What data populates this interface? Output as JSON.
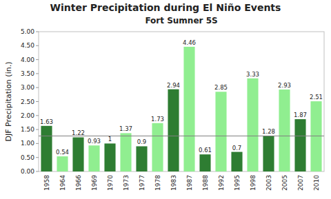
{
  "chart_data": {
    "type": "bar",
    "title": "Winter Precipitation during El Niño Events",
    "subtitle": "Fort Sumner 5S",
    "y_label": "DJF Precipitation (in.)",
    "categories": [
      "1958",
      "1964",
      "1966",
      "1969",
      "1970",
      "1973",
      "1977",
      "1978",
      "1983",
      "1987",
      "1988",
      "1992",
      "1995",
      "1998",
      "2003",
      "2005",
      "2007",
      "2010"
    ],
    "values": [
      1.63,
      0.54,
      1.22,
      0.93,
      1.0,
      1.37,
      0.9,
      1.73,
      2.94,
      4.46,
      0.61,
      2.85,
      0.7,
      3.33,
      1.28,
      2.93,
      1.87,
      2.51
    ],
    "colors": [
      "#2E7D32",
      "#90EE90",
      "#2E7D32",
      "#90EE90",
      "#2E7D32",
      "#90EE90",
      "#2E7D32",
      "#90EE90",
      "#2E7D32",
      "#90EE90",
      "#2E7D32",
      "#90EE90",
      "#2E7D32",
      "#90EE90",
      "#2E7D32",
      "#90EE90",
      "#2E7D32",
      "#90EE90"
    ],
    "reference_line": 1.27,
    "ylim": [
      0.0,
      5.0
    ],
    "yticks": [
      {
        "value": 0.0,
        "label": "0.00"
      },
      {
        "value": 0.5,
        "label": "0.50"
      },
      {
        "value": 1.0,
        "label": "1.00"
      },
      {
        "value": 1.5,
        "label": "1.50"
      },
      {
        "value": 2.0,
        "label": "2.00"
      },
      {
        "value": 2.5,
        "label": "2.50"
      },
      {
        "value": 3.0,
        "label": "3.00"
      },
      {
        "value": 3.5,
        "label": "3.50"
      },
      {
        "value": 4.0,
        "label": "4.00"
      },
      {
        "value": 4.5,
        "label": "4.50"
      },
      {
        "value": 5.0,
        "label": "5.00"
      }
    ],
    "data_labels": true,
    "grid": false
  }
}
